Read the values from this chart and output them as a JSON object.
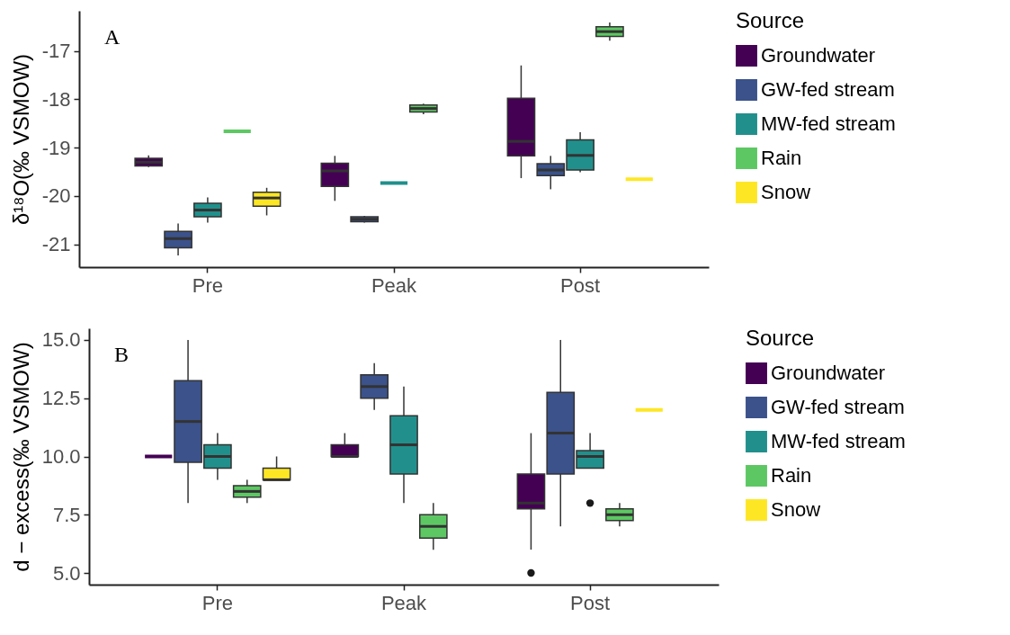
{
  "chart_data": [
    {
      "type": "box",
      "annotations": [
        "A"
      ],
      "ylabel": "δ¹⁸O(‰ VSMOW)",
      "legend_title": "Source",
      "legend": "right",
      "categories": [
        "Pre",
        "Peak",
        "Post"
      ],
      "ylim": [
        -21.47,
        -16.17
      ],
      "yticks": [
        -21,
        -20,
        -19,
        -18,
        -17
      ],
      "series": [
        {
          "name": "Groundwater",
          "color": "#440154",
          "boxes": [
            {
              "low": -19.4,
              "q1": -19.38,
              "median": -19.3,
              "q3": -19.22,
              "high": -19.16
            },
            {
              "low": -20.1,
              "q1": -19.8,
              "median": -19.48,
              "q3": -19.32,
              "high": -19.17
            },
            {
              "low": -19.63,
              "q1": -19.17,
              "median": -18.87,
              "q3": -17.98,
              "high": -17.3
            }
          ]
        },
        {
          "name": "GW-fed stream",
          "color": "#3b528b",
          "boxes": [
            {
              "low": -21.23,
              "q1": -21.07,
              "median": -20.88,
              "q3": -20.73,
              "high": -20.57
            },
            {
              "low": -20.55,
              "q1": -20.53,
              "median": -20.48,
              "q3": -20.43,
              "high": -20.41
            },
            {
              "low": -19.86,
              "q1": -19.58,
              "median": -19.46,
              "q3": -19.33,
              "high": -19.17
            }
          ]
        },
        {
          "name": "MW-fed stream",
          "color": "#21908c",
          "boxes": [
            {
              "low": -20.55,
              "q1": -20.43,
              "median": -20.29,
              "q3": -20.15,
              "high": -20.03
            },
            {
              "low": -19.73,
              "q1": -19.73,
              "median": -19.73,
              "q3": -19.73,
              "high": -19.73
            },
            {
              "low": -19.51,
              "q1": -19.46,
              "median": -19.16,
              "q3": -18.84,
              "high": -18.68
            }
          ]
        },
        {
          "name": "Rain",
          "color": "#5dc863",
          "boxes": [
            {
              "low": -18.66,
              "q1": -18.66,
              "median": -18.66,
              "q3": -18.66,
              "high": -18.66
            },
            {
              "low": -18.31,
              "q1": -18.26,
              "median": -18.19,
              "q3": -18.12,
              "high": -18.09
            },
            {
              "low": -16.79,
              "q1": -16.7,
              "median": -16.6,
              "q3": -16.5,
              "high": -16.41
            }
          ]
        },
        {
          "name": "Snow",
          "color": "#fde725",
          "boxes": [
            {
              "low": -20.4,
              "q1": -20.21,
              "median": -20.04,
              "q3": -19.92,
              "high": -19.83
            },
            null,
            {
              "low": -19.65,
              "q1": -19.65,
              "median": -19.65,
              "q3": -19.65,
              "high": -19.65
            }
          ]
        }
      ]
    },
    {
      "type": "box",
      "annotations": [
        "B"
      ],
      "ylabel": "d − excess(‰ VSMOW)",
      "legend_title": "Source",
      "legend": "right",
      "categories": [
        "Pre",
        "Peak",
        "Post"
      ],
      "ylim": [
        4.5,
        15.5
      ],
      "yticks": [
        {
          "value": 5,
          "label": "5.0"
        },
        {
          "value": 7.5,
          "label": "7.5"
        },
        {
          "value": 10,
          "label": "10.0"
        },
        {
          "value": 12.5,
          "label": "12.5"
        },
        {
          "value": 15,
          "label": "15.0"
        }
      ],
      "series": [
        {
          "name": "Groundwater",
          "color": "#440154",
          "boxes": [
            {
              "low": 10,
              "q1": 10,
              "median": 10,
              "q3": 10,
              "high": 10
            },
            {
              "low": 10,
              "q1": 10,
              "median": 10,
              "q3": 10.5,
              "high": 11
            },
            {
              "low": 6,
              "q1": 7.75,
              "median": 8,
              "q3": 9.25,
              "high": 11,
              "outliers": [
                5
              ]
            }
          ]
        },
        {
          "name": "GW-fed stream",
          "color": "#3b528b",
          "boxes": [
            {
              "low": 8,
              "q1": 9.75,
              "median": 11.5,
              "q3": 13.25,
              "high": 15
            },
            {
              "low": 12,
              "q1": 12.5,
              "median": 13,
              "q3": 13.5,
              "high": 14
            },
            {
              "low": 7,
              "q1": 9.25,
              "median": 11,
              "q3": 12.75,
              "high": 15
            }
          ]
        },
        {
          "name": "MW-fed stream",
          "color": "#21908c",
          "boxes": [
            {
              "low": 9,
              "q1": 9.5,
              "median": 10,
              "q3": 10.5,
              "high": 11
            },
            {
              "low": 8,
              "q1": 9.25,
              "median": 10.5,
              "q3": 11.75,
              "high": 13
            },
            {
              "low": 9.5,
              "q1": 9.5,
              "median": 10,
              "q3": 10.25,
              "high": 11,
              "outliers": [
                8
              ]
            }
          ]
        },
        {
          "name": "Rain",
          "color": "#5dc863",
          "boxes": [
            {
              "low": 8,
              "q1": 8.25,
              "median": 8.5,
              "q3": 8.75,
              "high": 9
            },
            {
              "low": 6,
              "q1": 6.5,
              "median": 7,
              "q3": 7.5,
              "high": 8
            },
            {
              "low": 7,
              "q1": 7.25,
              "median": 7.5,
              "q3": 7.75,
              "high": 8
            }
          ]
        },
        {
          "name": "Snow",
          "color": "#fde725",
          "boxes": [
            {
              "low": 9,
              "q1": 9,
              "median": 9,
              "q3": 9.5,
              "high": 10
            },
            null,
            {
              "low": 12,
              "q1": 12,
              "median": 12,
              "q3": 12,
              "high": 12
            }
          ]
        }
      ]
    }
  ]
}
